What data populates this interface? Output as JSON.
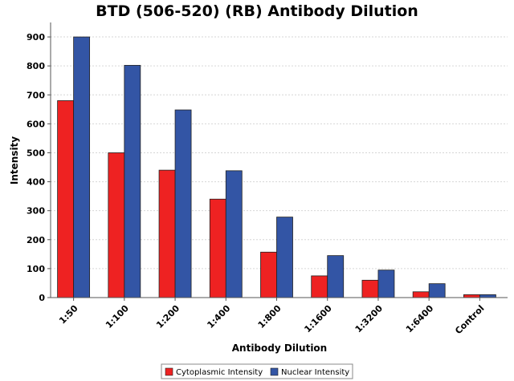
{
  "chart_data": {
    "type": "bar",
    "title": "BTD (506-520) (RB) Antibody Dilution",
    "xlabel": "Antibody Dilution",
    "ylabel": "Intensity",
    "ylim": [
      0,
      950
    ],
    "yticks": [
      0,
      100,
      200,
      300,
      400,
      500,
      600,
      700,
      800,
      900
    ],
    "grid": true,
    "legend_position": "bottom",
    "categories": [
      "1:50",
      "1:100",
      "1:200",
      "1:400",
      "1:800",
      "1:1600",
      "1:3200",
      "1:6400",
      "Control"
    ],
    "series": [
      {
        "name": "Cytoplasmic Intensity",
        "color": "#ee2222",
        "values": [
          680,
          500,
          440,
          340,
          157,
          75,
          60,
          20,
          10
        ]
      },
      {
        "name": "Nuclear Intensity",
        "color": "#3355a5",
        "values": [
          900,
          802,
          648,
          438,
          278,
          145,
          95,
          48,
          10
        ]
      }
    ]
  }
}
